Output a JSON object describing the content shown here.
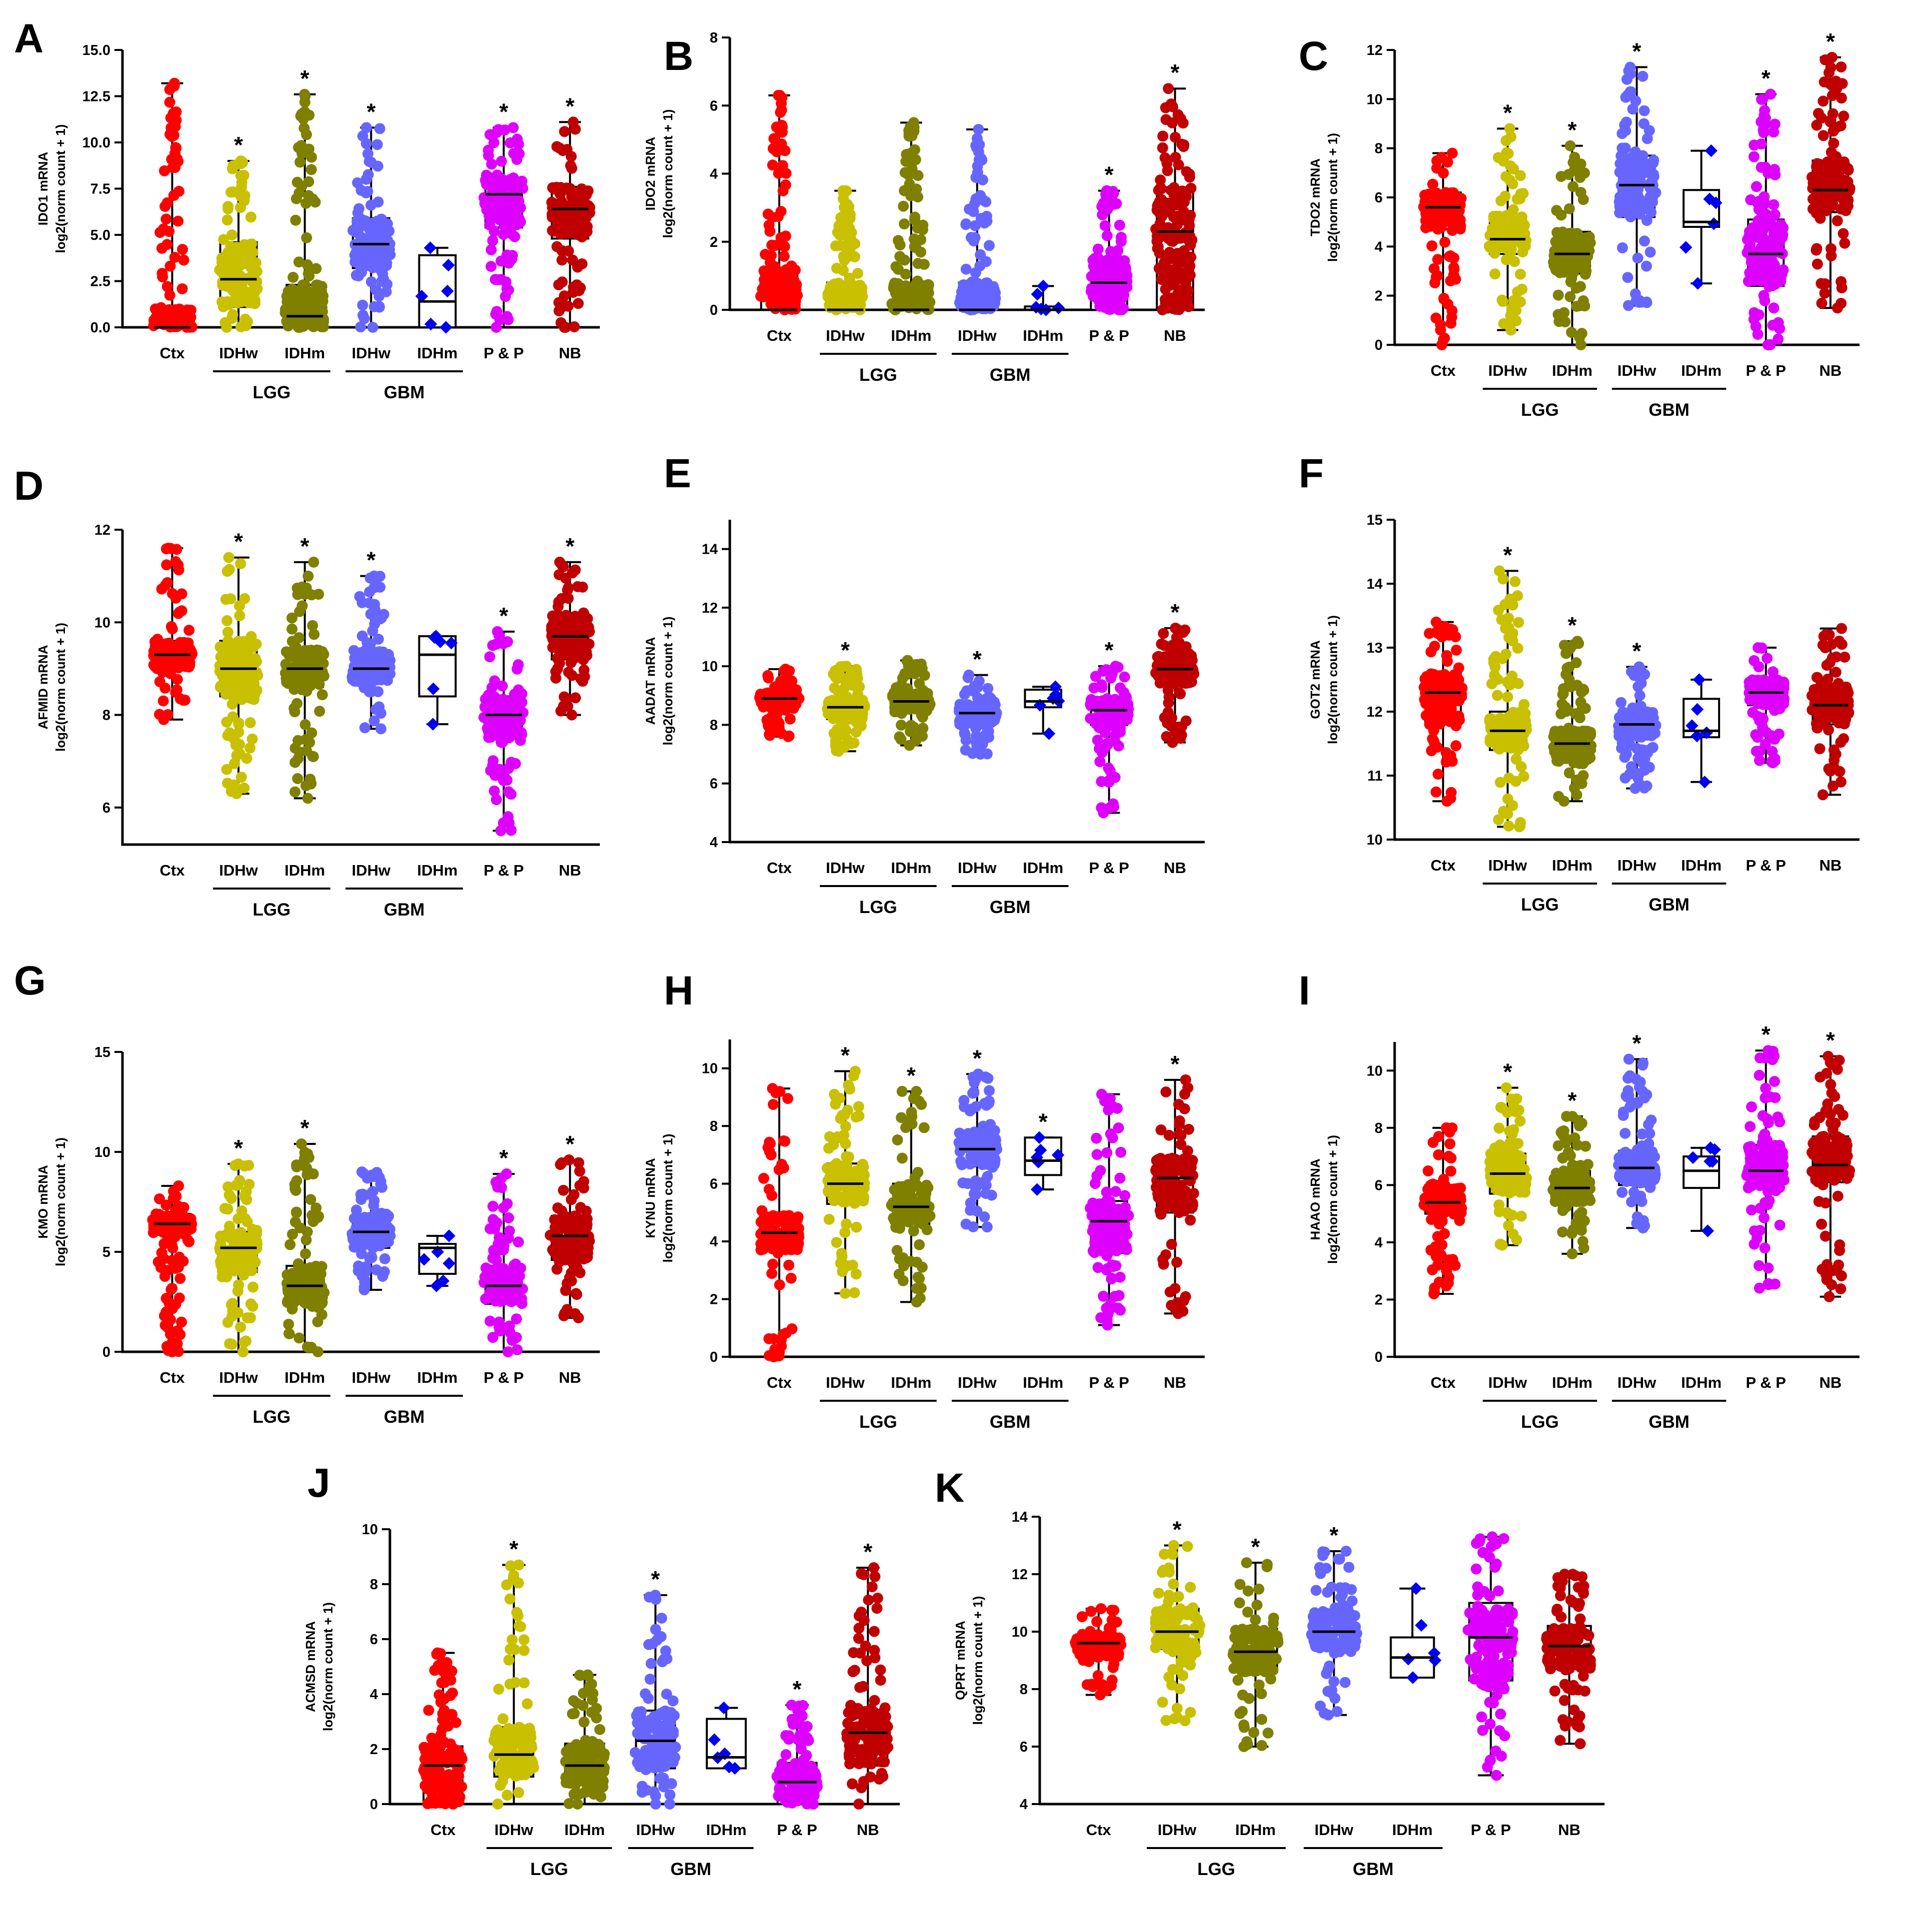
{
  "figure": {
    "y_axis_unit": "log2(norm count + 1)",
    "categories": [
      "Ctx",
      "IDHw",
      "IDHm",
      "IDHw",
      "IDHm",
      "P & P",
      "NB"
    ],
    "groups": [
      {
        "label": "LGG",
        "from": 1,
        "to": 2
      },
      {
        "label": "GBM",
        "from": 3,
        "to": 4
      }
    ],
    "significance_marker": "*",
    "colors": [
      "#ff0000",
      "#c8c000",
      "#7f7f00",
      "#6666ff",
      "#0000ee",
      "#dd00ff",
      "#c00000"
    ]
  },
  "chart_data": [
    {
      "panel": "A",
      "type": "box-scatter",
      "ylabel": "IDO1 mRNA",
      "yticks": [
        "0.0",
        "2.5",
        "5.0",
        "7.5",
        "10.0",
        "12.5",
        "15.0"
      ],
      "ylim": [
        0,
        15
      ],
      "series": [
        {
          "category": "Ctx",
          "min": 0,
          "q1": 0,
          "median": 0,
          "q3": 1.0,
          "max": 13.2,
          "significant": false
        },
        {
          "category": "IDHw",
          "min": 0,
          "q1": 1.1,
          "median": 2.6,
          "q3": 4.6,
          "max": 9.0,
          "significant": true
        },
        {
          "category": "IDHm",
          "min": 0,
          "q1": 0,
          "median": 0.6,
          "q3": 2.3,
          "max": 12.6,
          "significant": true
        },
        {
          "category": "IDHw",
          "min": 0,
          "q1": 3.2,
          "median": 4.5,
          "q3": 5.9,
          "max": 10.8,
          "significant": true
        },
        {
          "category": "IDHm",
          "min": 0,
          "q1": 0,
          "median": 1.4,
          "q3": 3.9,
          "max": 4.3,
          "significant": false
        },
        {
          "category": "P & P",
          "min": 0,
          "q1": 5.4,
          "median": 7.2,
          "q3": 8.1,
          "max": 10.8,
          "significant": true
        },
        {
          "category": "NB",
          "min": 0,
          "q1": 4.8,
          "median": 6.4,
          "q3": 7.6,
          "max": 11.1,
          "significant": true
        }
      ]
    },
    {
      "panel": "B",
      "type": "box-scatter",
      "ylabel": "IDO2 mRNA",
      "yticks": [
        "0",
        "2",
        "4",
        "6",
        "8"
      ],
      "ylim": [
        0,
        8
      ],
      "series": [
        {
          "category": "Ctx",
          "min": 0,
          "q1": 0,
          "median": 0,
          "q3": 1.2,
          "max": 6.3,
          "significant": false
        },
        {
          "category": "IDHw",
          "min": 0,
          "q1": 0,
          "median": 0,
          "q3": 0.8,
          "max": 3.5,
          "significant": false
        },
        {
          "category": "IDHm",
          "min": 0,
          "q1": 0,
          "median": 0,
          "q3": 0.8,
          "max": 5.5,
          "significant": false
        },
        {
          "category": "IDHw",
          "min": 0,
          "q1": 0,
          "median": 0,
          "q3": 0.8,
          "max": 5.3,
          "significant": false
        },
        {
          "category": "IDHm",
          "min": 0,
          "q1": 0,
          "median": 0,
          "q3": 0.1,
          "max": 0.7,
          "significant": false
        },
        {
          "category": "P & P",
          "min": 0,
          "q1": 0,
          "median": 0.8,
          "q3": 1.5,
          "max": 3.5,
          "significant": true
        },
        {
          "category": "NB",
          "min": 0,
          "q1": 0,
          "median": 2.3,
          "q3": 3.6,
          "max": 6.5,
          "significant": true
        }
      ]
    },
    {
      "panel": "C",
      "type": "box-scatter",
      "ylabel": "TDO2 mRNA",
      "yticks": [
        "0",
        "2",
        "4",
        "6",
        "8",
        "10",
        "12"
      ],
      "ylim": [
        0,
        12
      ],
      "series": [
        {
          "category": "Ctx",
          "min": 0,
          "q1": 4.7,
          "median": 5.6,
          "q3": 6.2,
          "max": 7.8,
          "significant": false
        },
        {
          "category": "IDHw",
          "min": 0.6,
          "q1": 3.7,
          "median": 4.3,
          "q3": 5.3,
          "max": 8.8,
          "significant": true
        },
        {
          "category": "IDHm",
          "min": 0,
          "q1": 2.9,
          "median": 3.7,
          "q3": 4.6,
          "max": 8.1,
          "significant": true
        },
        {
          "category": "IDHw",
          "min": 1.6,
          "q1": 5.2,
          "median": 6.5,
          "q3": 7.7,
          "max": 11.3,
          "significant": true
        },
        {
          "category": "IDHm",
          "min": 2.5,
          "q1": 4.8,
          "median": 5.0,
          "q3": 6.3,
          "max": 7.9,
          "significant": false
        },
        {
          "category": "P & P",
          "min": 0,
          "q1": 2.4,
          "median": 3.7,
          "q3": 5.1,
          "max": 10.2,
          "significant": true
        },
        {
          "category": "NB",
          "min": 1.5,
          "q1": 5.4,
          "median": 6.3,
          "q3": 7.5,
          "max": 11.7,
          "significant": true
        }
      ]
    },
    {
      "panel": "D",
      "type": "box-scatter",
      "ylabel": "AFMID mRNA",
      "yticks": [
        "6",
        "8",
        "10",
        "12"
      ],
      "ylim": [
        5.2,
        12
      ],
      "series": [
        {
          "category": "Ctx",
          "min": 7.9,
          "q1": 9.0,
          "median": 9.3,
          "q3": 9.6,
          "max": 11.6,
          "significant": false
        },
        {
          "category": "IDHw",
          "min": 6.3,
          "q1": 8.4,
          "median": 9.0,
          "q3": 9.6,
          "max": 11.4,
          "significant": true
        },
        {
          "category": "IDHm",
          "min": 6.2,
          "q1": 8.6,
          "median": 9.0,
          "q3": 9.4,
          "max": 11.3,
          "significant": true
        },
        {
          "category": "IDHw",
          "min": 7.7,
          "q1": 8.7,
          "median": 9.0,
          "q3": 9.4,
          "max": 11.0,
          "significant": true
        },
        {
          "category": "IDHm",
          "min": 7.8,
          "q1": 8.4,
          "median": 9.3,
          "q3": 9.7,
          "max": 9.7,
          "significant": false
        },
        {
          "category": "P & P",
          "min": 5.5,
          "q1": 7.5,
          "median": 8.0,
          "q3": 8.4,
          "max": 9.8,
          "significant": true
        },
        {
          "category": "NB",
          "min": 8.0,
          "q1": 9.2,
          "median": 9.7,
          "q3": 10.2,
          "max": 11.3,
          "significant": true
        }
      ]
    },
    {
      "panel": "E",
      "type": "box-scatter",
      "ylabel": "AADAT mRNA",
      "yticks": [
        "4",
        "6",
        "8",
        "10",
        "12",
        "14"
      ],
      "ylim": [
        4,
        15
      ],
      "series": [
        {
          "category": "Ctx",
          "min": 7.6,
          "q1": 8.6,
          "median": 8.9,
          "q3": 9.1,
          "max": 9.9,
          "significant": false
        },
        {
          "category": "IDHw",
          "min": 7.1,
          "q1": 8.2,
          "median": 8.6,
          "q3": 8.9,
          "max": 10.0,
          "significant": true
        },
        {
          "category": "IDHm",
          "min": 7.3,
          "q1": 8.5,
          "median": 8.8,
          "q3": 9.1,
          "max": 10.2,
          "significant": false
        },
        {
          "category": "IDHw",
          "min": 7.0,
          "q1": 8.0,
          "median": 8.4,
          "q3": 8.7,
          "max": 9.7,
          "significant": true
        },
        {
          "category": "IDHm",
          "min": 7.7,
          "q1": 8.6,
          "median": 8.8,
          "q3": 9.2,
          "max": 9.3,
          "significant": false
        },
        {
          "category": "P & P",
          "min": 5.0,
          "q1": 8.0,
          "median": 8.5,
          "q3": 8.9,
          "max": 10.0,
          "significant": true
        },
        {
          "category": "NB",
          "min": 7.4,
          "q1": 9.4,
          "median": 9.9,
          "q3": 10.4,
          "max": 11.3,
          "significant": true
        }
      ]
    },
    {
      "panel": "F",
      "type": "box-scatter",
      "ylabel": "GOT2 mRNA",
      "yticks": [
        "10",
        "11",
        "12",
        "13",
        "14",
        "15"
      ],
      "ylim": [
        10,
        15
      ],
      "series": [
        {
          "category": "Ctx",
          "min": 10.6,
          "q1": 11.8,
          "median": 12.3,
          "q3": 12.6,
          "max": 13.4,
          "significant": false
        },
        {
          "category": "IDHw",
          "min": 10.2,
          "q1": 11.4,
          "median": 11.7,
          "q3": 12.0,
          "max": 14.2,
          "significant": true
        },
        {
          "category": "IDHm",
          "min": 10.6,
          "q1": 11.2,
          "median": 11.5,
          "q3": 11.7,
          "max": 13.1,
          "significant": true
        },
        {
          "category": "IDHw",
          "min": 10.8,
          "q1": 11.6,
          "median": 11.8,
          "q3": 12.0,
          "max": 12.7,
          "significant": true
        },
        {
          "category": "IDHm",
          "min": 10.9,
          "q1": 11.6,
          "median": 11.7,
          "q3": 12.2,
          "max": 12.5,
          "significant": false
        },
        {
          "category": "P & P",
          "min": 11.2,
          "q1": 12.1,
          "median": 12.3,
          "q3": 12.5,
          "max": 13.0,
          "significant": false
        },
        {
          "category": "NB",
          "min": 10.7,
          "q1": 11.8,
          "median": 12.1,
          "q3": 12.4,
          "max": 13.3,
          "significant": false
        }
      ]
    },
    {
      "panel": "G",
      "type": "box-scatter",
      "ylabel": "KMO mRNA",
      "yticks": [
        "0",
        "5",
        "10",
        "15"
      ],
      "ylim": [
        0,
        15
      ],
      "series": [
        {
          "category": "Ctx",
          "min": 0,
          "q1": 5.9,
          "median": 6.4,
          "q3": 6.9,
          "max": 8.3,
          "significant": false
        },
        {
          "category": "IDHw",
          "min": 0,
          "q1": 4.0,
          "median": 5.2,
          "q3": 6.0,
          "max": 9.4,
          "significant": true
        },
        {
          "category": "IDHm",
          "min": 0,
          "q1": 2.4,
          "median": 3.3,
          "q3": 4.3,
          "max": 10.4,
          "significant": true
        },
        {
          "category": "IDHw",
          "min": 3.1,
          "q1": 5.2,
          "median": 6.0,
          "q3": 6.8,
          "max": 9.0,
          "significant": false
        },
        {
          "category": "IDHm",
          "min": 3.3,
          "q1": 3.9,
          "median": 5.2,
          "q3": 5.4,
          "max": 5.8,
          "significant": false
        },
        {
          "category": "P & P",
          "min": 0,
          "q1": 2.4,
          "median": 3.3,
          "q3": 4.2,
          "max": 8.9,
          "significant": true
        },
        {
          "category": "NB",
          "min": 1.7,
          "q1": 4.6,
          "median": 5.8,
          "q3": 6.8,
          "max": 9.6,
          "significant": true
        }
      ]
    },
    {
      "panel": "H",
      "type": "box-scatter",
      "ylabel": "KYNU mRNA",
      "yticks": [
        "0",
        "2",
        "4",
        "6",
        "8",
        "10"
      ],
      "ylim": [
        0,
        11
      ],
      "series": [
        {
          "category": "Ctx",
          "min": 0,
          "q1": 3.7,
          "median": 4.3,
          "q3": 4.9,
          "max": 9.3,
          "significant": false
        },
        {
          "category": "IDHw",
          "min": 2.2,
          "q1": 5.3,
          "median": 6.0,
          "q3": 6.7,
          "max": 9.9,
          "significant": true
        },
        {
          "category": "IDHm",
          "min": 1.9,
          "q1": 4.6,
          "median": 5.2,
          "q3": 6.0,
          "max": 9.2,
          "significant": true
        },
        {
          "category": "IDHw",
          "min": 4.5,
          "q1": 6.6,
          "median": 7.2,
          "q3": 7.8,
          "max": 9.8,
          "significant": true
        },
        {
          "category": "IDHm",
          "min": 5.8,
          "q1": 6.3,
          "median": 6.8,
          "q3": 7.6,
          "max": 7.6,
          "significant": true
        },
        {
          "category": "P & P",
          "min": 1.1,
          "q1": 3.6,
          "median": 4.7,
          "q3": 5.4,
          "max": 9.1,
          "significant": false
        },
        {
          "category": "NB",
          "min": 1.5,
          "q1": 5.0,
          "median": 6.2,
          "q3": 6.9,
          "max": 9.6,
          "significant": true
        }
      ]
    },
    {
      "panel": "I",
      "type": "box-scatter",
      "ylabel": "HAAO mRNA",
      "yticks": [
        "0",
        "2",
        "4",
        "6",
        "8",
        "10"
      ],
      "ylim": [
        0,
        11
      ],
      "series": [
        {
          "category": "Ctx",
          "min": 2.2,
          "q1": 5.0,
          "median": 5.4,
          "q3": 6.0,
          "max": 8.0,
          "significant": false
        },
        {
          "category": "IDHw",
          "min": 3.9,
          "q1": 5.7,
          "median": 6.4,
          "q3": 7.1,
          "max": 9.4,
          "significant": true
        },
        {
          "category": "IDHm",
          "min": 3.6,
          "q1": 5.4,
          "median": 5.9,
          "q3": 6.5,
          "max": 8.4,
          "significant": true
        },
        {
          "category": "IDHw",
          "min": 4.5,
          "q1": 6.0,
          "median": 6.6,
          "q3": 7.2,
          "max": 10.4,
          "significant": true
        },
        {
          "category": "IDHm",
          "min": 4.4,
          "q1": 5.9,
          "median": 6.5,
          "q3": 7.0,
          "max": 7.3,
          "significant": false
        },
        {
          "category": "P & P",
          "min": 2.4,
          "q1": 5.9,
          "median": 6.5,
          "q3": 7.4,
          "max": 10.7,
          "significant": true
        },
        {
          "category": "NB",
          "min": 2.1,
          "q1": 6.1,
          "median": 6.7,
          "q3": 7.7,
          "max": 10.5,
          "significant": true
        }
      ]
    },
    {
      "panel": "J",
      "type": "box-scatter",
      "ylabel": "ACMSD mRNA",
      "yticks": [
        "0",
        "2",
        "4",
        "6",
        "8",
        "10"
      ],
      "ylim": [
        0,
        10
      ],
      "series": [
        {
          "category": "Ctx",
          "min": 0,
          "q1": 0,
          "median": 1.4,
          "q3": 2.1,
          "max": 5.5,
          "significant": false
        },
        {
          "category": "IDHw",
          "min": 0,
          "q1": 1.0,
          "median": 1.8,
          "q3": 2.8,
          "max": 8.7,
          "significant": true
        },
        {
          "category": "IDHm",
          "min": 0,
          "q1": 0.7,
          "median": 1.4,
          "q3": 2.2,
          "max": 4.7,
          "significant": false
        },
        {
          "category": "IDHw",
          "min": 0,
          "q1": 1.3,
          "median": 2.3,
          "q3": 3.4,
          "max": 7.6,
          "significant": true
        },
        {
          "category": "IDHm",
          "min": 1.3,
          "q1": 1.3,
          "median": 1.7,
          "q3": 3.1,
          "max": 3.5,
          "significant": false
        },
        {
          "category": "P & P",
          "min": 0,
          "q1": 0,
          "median": 0.8,
          "q3": 1.5,
          "max": 3.6,
          "significant": true
        },
        {
          "category": "NB",
          "min": 0,
          "q1": 1.4,
          "median": 2.6,
          "q3": 3.4,
          "max": 8.6,
          "significant": true
        }
      ]
    },
    {
      "panel": "K",
      "type": "box-scatter",
      "ylabel": "QPRT mRNA",
      "yticks": [
        "4",
        "6",
        "8",
        "10",
        "12",
        "14"
      ],
      "ylim": [
        4,
        14
      ],
      "series": [
        {
          "category": "Ctx",
          "min": 7.8,
          "q1": 9.1,
          "median": 9.6,
          "q3": 9.9,
          "max": 10.8,
          "significant": false
        },
        {
          "category": "IDHw",
          "min": 6.9,
          "q1": 9.4,
          "median": 10.0,
          "q3": 10.8,
          "max": 13.0,
          "significant": true
        },
        {
          "category": "IDHm",
          "min": 6.0,
          "q1": 8.6,
          "median": 9.3,
          "q3": 10.1,
          "max": 12.4,
          "significant": true
        },
        {
          "category": "IDHw",
          "min": 7.1,
          "q1": 9.4,
          "median": 10.0,
          "q3": 10.7,
          "max": 12.8,
          "significant": true
        },
        {
          "category": "IDHm",
          "min": 8.4,
          "q1": 8.4,
          "median": 9.1,
          "q3": 9.8,
          "max": 11.5,
          "significant": false
        },
        {
          "category": "P & P",
          "min": 5.0,
          "q1": 8.3,
          "median": 9.8,
          "q3": 11.0,
          "max": 13.3,
          "significant": false
        },
        {
          "category": "NB",
          "min": 6.1,
          "q1": 8.7,
          "median": 9.5,
          "q3": 10.2,
          "max": 12.0,
          "significant": false
        }
      ]
    }
  ]
}
